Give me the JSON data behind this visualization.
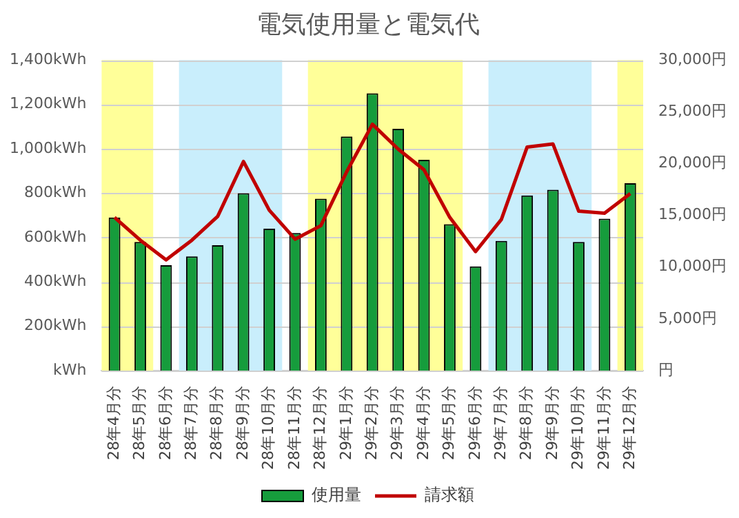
{
  "chart_data": {
    "type": "bar",
    "title": "電気使用量と電気代",
    "categories": [
      "28年4月分",
      "28年5月分",
      "28年6月分",
      "28年7月分",
      "28年8月分",
      "28年9月分",
      "28年10月分",
      "28年11月分",
      "28年12月分",
      "29年1月分",
      "29年2月分",
      "29年3月分",
      "29年4月分",
      "29年5月分",
      "29年6月分",
      "29年7月分",
      "29年8月分",
      "29年9月分",
      "29年10月分",
      "29年11月分",
      "29年12月分"
    ],
    "series": [
      {
        "name": "使用量",
        "color": "#169c3c",
        "values": [
          690,
          580,
          475,
          515,
          565,
          800,
          640,
          620,
          775,
          1055,
          1250,
          1090,
          950,
          660,
          470,
          585,
          790,
          815,
          580,
          685,
          845
        ]
      },
      {
        "name": "請求額",
        "type": "line",
        "axis": "y2",
        "color": "#c00000",
        "values": [
          14800,
          12600,
          10700,
          12600,
          14900,
          20200,
          15500,
          12700,
          14000,
          19200,
          23800,
          21400,
          19400,
          14800,
          11500,
          14600,
          21600,
          21900,
          15400,
          15200,
          17100
        ]
      }
    ],
    "ylim": [
      0,
      1400
    ],
    "yticks": [
      {
        "value": 0,
        "label": "kWh"
      },
      {
        "value": 200,
        "label": "200kWh"
      },
      {
        "value": 400,
        "label": "400kWh"
      },
      {
        "value": 600,
        "label": "600kWh"
      },
      {
        "value": 800,
        "label": "800kWh"
      },
      {
        "value": 1000,
        "label": "1,000kWh"
      },
      {
        "value": 1200,
        "label": "1,200kWh"
      },
      {
        "value": 1400,
        "label": "1,400kWh"
      }
    ],
    "y2lim": [
      0,
      30000
    ],
    "y2ticks": [
      {
        "value": 0,
        "label": "円"
      },
      {
        "value": 5000,
        "label": "5,000円"
      },
      {
        "value": 10000,
        "label": "10,000円"
      },
      {
        "value": 15000,
        "label": "15,000円"
      },
      {
        "value": 20000,
        "label": "20,000円"
      },
      {
        "value": 25000,
        "label": "25,000円"
      },
      {
        "value": 30000,
        "label": "30,000円"
      }
    ],
    "bands": [
      {
        "axis": "x",
        "from": "28年4月分",
        "to": "28年5月分",
        "color": "#ffff99"
      },
      {
        "axis": "x",
        "from": "28年7月分",
        "to": "28年10月分",
        "color": "#c9eefc"
      },
      {
        "axis": "x",
        "from": "28年12月分",
        "to": "29年5月分",
        "color": "#ffff99"
      },
      {
        "axis": "x",
        "from": "29年7月分",
        "to": "29年10月分",
        "color": "#c9eefc"
      },
      {
        "axis": "x",
        "from": "29年12月分",
        "to": "29年12月分",
        "color": "#ffff99"
      }
    ],
    "grid": "y",
    "legend": "bottom",
    "marker": "none",
    "line_style": "solid"
  }
}
